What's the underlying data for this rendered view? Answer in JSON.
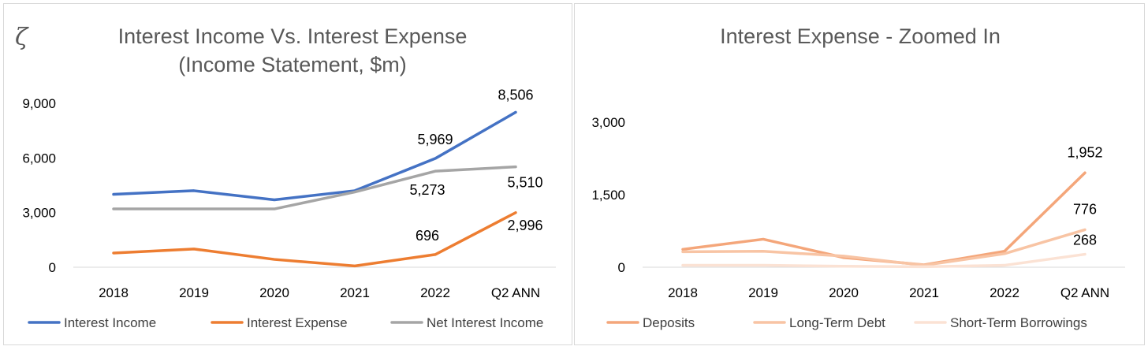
{
  "logo_glyph": "ζ",
  "chart_data": [
    {
      "type": "line",
      "title": "Interest Income Vs. Interest Expense",
      "subtitle": "(Income Statement, $m)",
      "categories": [
        "2018",
        "2019",
        "2020",
        "2021",
        "2022",
        "Q2 ANN"
      ],
      "ylim": [
        0,
        9000
      ],
      "yticks": [
        "0",
        "3,000",
        "6,000",
        "9,000"
      ],
      "ytick_values": [
        0,
        3000,
        6000,
        9000
      ],
      "grid": false,
      "legend_position": "bottom",
      "series": [
        {
          "name": "Interest Income",
          "color": "#4472c4",
          "values": [
            4000,
            4200,
            3700,
            4200,
            5969,
            8506
          ],
          "labels": [
            null,
            null,
            null,
            null,
            "5,969",
            "8,506"
          ]
        },
        {
          "name": "Interest Expense",
          "color": "#ed7d31",
          "values": [
            780,
            1000,
            430,
            70,
            696,
            2996
          ],
          "labels": [
            null,
            null,
            null,
            null,
            "696",
            "2,996"
          ]
        },
        {
          "name": "Net Interest Income",
          "color": "#a5a5a5",
          "values": [
            3200,
            3200,
            3200,
            4130,
            5273,
            5510
          ],
          "labels": [
            null,
            null,
            null,
            null,
            "5,273",
            "5,510"
          ]
        }
      ]
    },
    {
      "type": "line",
      "title": "Interest Expense - Zoomed In",
      "categories": [
        "2018",
        "2019",
        "2020",
        "2021",
        "2022",
        "Q2 ANN"
      ],
      "ylim": [
        0,
        3000
      ],
      "yticks": [
        "0",
        "1,500",
        "3,000"
      ],
      "ytick_values": [
        0,
        1500,
        3000
      ],
      "grid": false,
      "legend_position": "bottom",
      "series": [
        {
          "name": "Deposits",
          "color": "#f4a67a",
          "values": [
            370,
            580,
            200,
            50,
            330,
            1952
          ],
          "labels": [
            null,
            null,
            null,
            null,
            null,
            "1,952"
          ]
        },
        {
          "name": "Long-Term Debt",
          "color": "#f8c4a4",
          "values": [
            320,
            330,
            230,
            40,
            280,
            776
          ],
          "labels": [
            null,
            null,
            null,
            null,
            null,
            "776"
          ]
        },
        {
          "name": "Short-Term Borrowings",
          "color": "#fbe2d4",
          "values": [
            40,
            40,
            20,
            10,
            40,
            268
          ],
          "labels": [
            null,
            null,
            null,
            null,
            null,
            "268"
          ]
        }
      ]
    }
  ]
}
